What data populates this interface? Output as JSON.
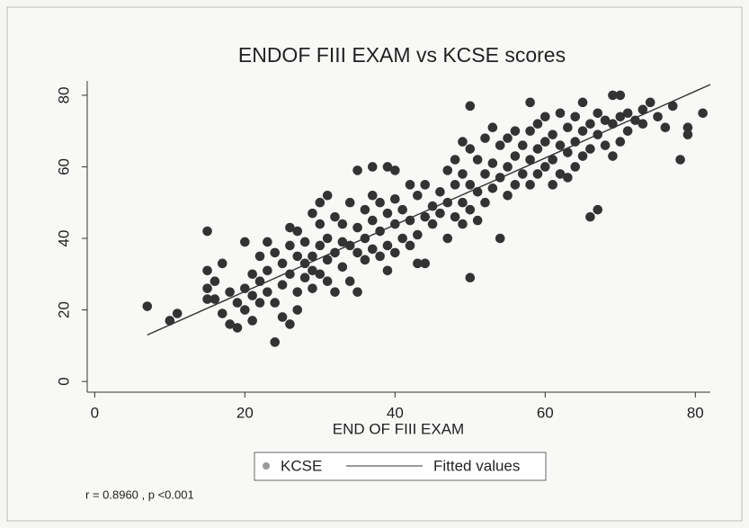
{
  "chart_data": {
    "type": "scatter",
    "title": "ENDOF FIII EXAM vs KCSE scores",
    "x_label": "END OF FIII EXAM",
    "annotation": "r = 0.8960 ,  p <0.001",
    "xlim": [
      -1,
      82
    ],
    "ylim": [
      -3,
      84
    ],
    "xticks": [
      0,
      20,
      40,
      60,
      80
    ],
    "yticks": [
      0,
      20,
      40,
      60,
      80
    ],
    "grid": false,
    "series": [
      {
        "name": "KCSE",
        "color": "#333333",
        "x": [
          7,
          10,
          11,
          15,
          15,
          15,
          15,
          16,
          16,
          17,
          17,
          18,
          18,
          19,
          19,
          20,
          20,
          20,
          21,
          21,
          21,
          22,
          22,
          22,
          23,
          23,
          23,
          24,
          24,
          24,
          25,
          25,
          25,
          26,
          26,
          26,
          26,
          27,
          27,
          27,
          27,
          28,
          28,
          28,
          29,
          29,
          29,
          29,
          30,
          30,
          30,
          30,
          31,
          31,
          31,
          31,
          32,
          32,
          32,
          33,
          33,
          33,
          34,
          34,
          34,
          35,
          35,
          35,
          35,
          36,
          36,
          36,
          37,
          37,
          37,
          37,
          38,
          38,
          38,
          39,
          39,
          39,
          39,
          40,
          40,
          40,
          40,
          41,
          41,
          42,
          42,
          42,
          43,
          43,
          43,
          44,
          44,
          44,
          45,
          45,
          46,
          46,
          47,
          47,
          47,
          48,
          48,
          48,
          49,
          49,
          49,
          49,
          50,
          50,
          50,
          50,
          50,
          51,
          51,
          51,
          52,
          52,
          52,
          53,
          53,
          53,
          54,
          54,
          54,
          55,
          55,
          55,
          56,
          56,
          56,
          57,
          57,
          58,
          58,
          58,
          58,
          59,
          59,
          59,
          60,
          60,
          60,
          61,
          61,
          61,
          62,
          62,
          62,
          63,
          63,
          63,
          64,
          64,
          64,
          65,
          65,
          65,
          66,
          66,
          66,
          67,
          67,
          67,
          68,
          68,
          69,
          69,
          69,
          70,
          70,
          70,
          71,
          71,
          72,
          73,
          73,
          74,
          75,
          76,
          77,
          78,
          79,
          79,
          81
        ],
        "values": [
          21,
          17,
          19,
          42,
          31,
          26,
          23,
          28,
          23,
          33,
          19,
          25,
          16,
          15,
          22,
          39,
          26,
          20,
          30,
          24,
          17,
          22,
          28,
          35,
          25,
          39,
          31,
          11,
          36,
          22,
          27,
          33,
          18,
          43,
          38,
          30,
          16,
          42,
          35,
          25,
          20,
          33,
          29,
          39,
          47,
          31,
          26,
          35,
          50,
          44,
          38,
          30,
          52,
          40,
          34,
          28,
          46,
          36,
          25,
          44,
          32,
          39,
          50,
          38,
          28,
          59,
          43,
          36,
          25,
          48,
          40,
          34,
          60,
          52,
          45,
          37,
          50,
          42,
          35,
          60,
          47,
          38,
          31,
          59,
          51,
          44,
          36,
          48,
          40,
          55,
          45,
          38,
          52,
          41,
          33,
          55,
          46,
          33,
          49,
          44,
          53,
          47,
          59,
          50,
          40,
          62,
          55,
          46,
          67,
          58,
          50,
          44,
          77,
          65,
          55,
          48,
          29,
          62,
          53,
          45,
          68,
          58,
          50,
          71,
          61,
          54,
          66,
          57,
          40,
          68,
          60,
          52,
          70,
          63,
          55,
          66,
          58,
          78,
          70,
          62,
          55,
          72,
          65,
          58,
          74,
          67,
          60,
          69,
          62,
          55,
          75,
          66,
          58,
          71,
          64,
          57,
          74,
          67,
          60,
          78,
          70,
          63,
          72,
          65,
          46,
          75,
          69,
          48,
          73,
          66,
          80,
          72,
          63,
          80,
          74,
          67,
          75,
          70,
          73,
          76,
          72,
          78,
          74,
          71,
          77,
          62,
          71,
          69,
          75
        ]
      },
      {
        "name": "Fitted values",
        "color": "#333333",
        "type": "line",
        "x": [
          7,
          82
        ],
        "values": [
          13,
          83
        ]
      }
    ]
  }
}
